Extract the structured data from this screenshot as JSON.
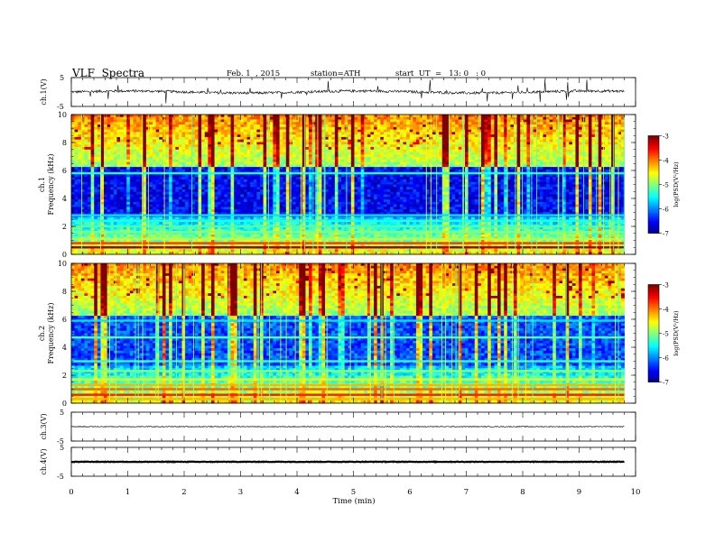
{
  "header": {
    "title": "VLF  Spectra",
    "date": "Feb. 1  , 2015",
    "station": "station=ATH",
    "start": "start  UT  =   13: 0   : 0"
  },
  "chart_data": [
    {
      "type": "line",
      "panel": "ch1-waveform",
      "ylabel": "ch.1(V)",
      "ylim": [
        -5,
        5
      ],
      "yticks": [
        "5",
        "-5"
      ],
      "xlim": [
        0,
        10
      ],
      "baseline": 0,
      "trace_end": 9.8
    },
    {
      "type": "heatmap",
      "panel": "ch1-spectrogram",
      "ylabel": "Frequency  (kHz)",
      "ylabel_channel": "ch.1",
      "ylim": [
        0,
        10
      ],
      "yticks": [
        "0",
        "2",
        "4",
        "6",
        "8",
        "10"
      ],
      "xlim": [
        0,
        10
      ],
      "data_end": 9.8,
      "colorbar": {
        "label": "log(PSD(V²/Hz)",
        "range": [
          -7,
          -3
        ],
        "ticks": [
          "-3",
          "-4",
          "-5",
          "-6",
          "-7"
        ]
      }
    },
    {
      "type": "heatmap",
      "panel": "ch2-spectrogram",
      "ylabel": "Frequency  (kHz)",
      "ylabel_channel": "ch.2",
      "ylim": [
        0,
        10
      ],
      "yticks": [
        "0",
        "2",
        "4",
        "6",
        "8",
        "10"
      ],
      "xlim": [
        0,
        10
      ],
      "data_end": 9.8,
      "colorbar": {
        "label": "log(PSD(V²/Hz)",
        "range": [
          -7,
          -3
        ],
        "ticks": [
          "-3",
          "-4",
          "-5",
          "-6",
          "-7"
        ]
      }
    },
    {
      "type": "line",
      "panel": "ch3-waveform",
      "ylabel": "ch.3(V)",
      "ylim": [
        -5,
        5
      ],
      "yticks": [
        "5",
        "-5"
      ],
      "xlim": [
        0,
        10
      ],
      "baseline": 0,
      "trace_end": 9.8
    },
    {
      "type": "line",
      "panel": "ch4-waveform",
      "ylabel": "ch.4(V)",
      "ylim": [
        -5,
        5
      ],
      "yticks": [
        "5",
        "-5"
      ],
      "xlim": [
        0,
        10
      ],
      "baseline": 0,
      "trace_end": 9.8
    }
  ],
  "xaxis": {
    "label": "Time  (min)",
    "ticks": [
      "0",
      "1",
      "2",
      "3",
      "4",
      "5",
      "6",
      "7",
      "8",
      "9",
      "10"
    ]
  }
}
